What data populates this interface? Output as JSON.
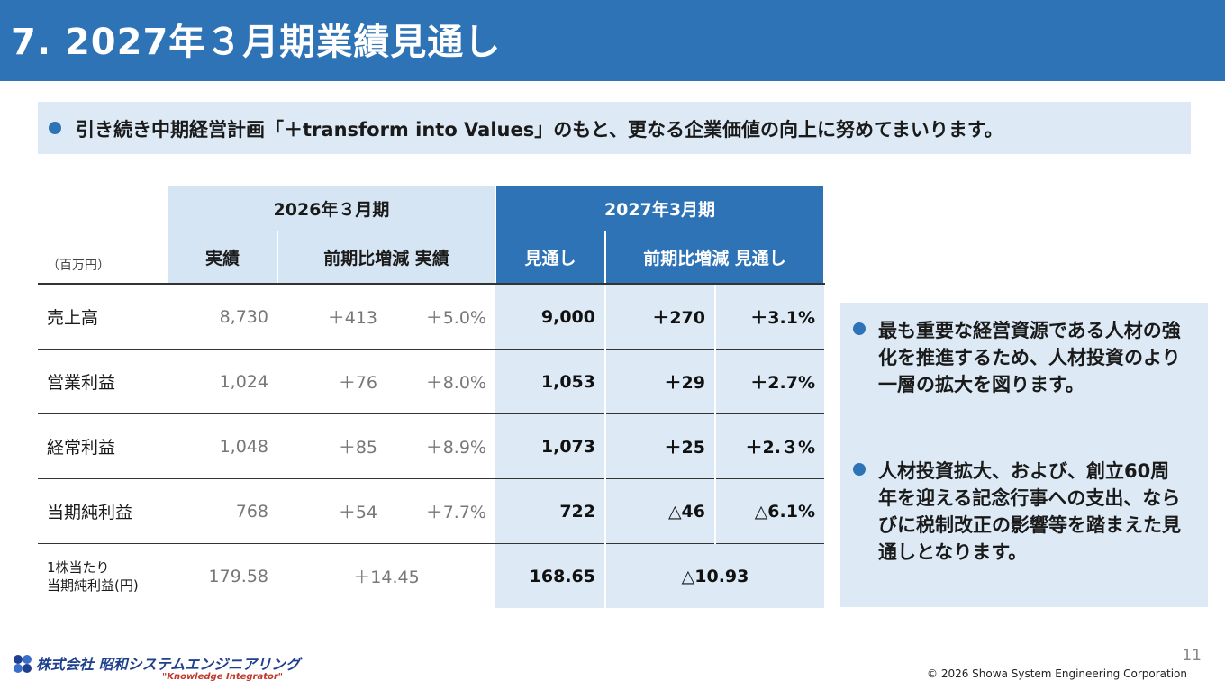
{
  "header": {
    "title": "7. 2027年３月期業績見通し"
  },
  "banner": {
    "text": "引き続き中期経営計画「＋transform into Values」のもと、更なる企業価値の向上に努めてまいります。"
  },
  "table": {
    "unit": "（百万円）",
    "group_2026": "2026年３月期",
    "group_2027": "2027年3月期",
    "sub_actual": "実績",
    "sub_yoy_actual": "前期比増減 実績",
    "sub_forecast": "見通し",
    "sub_yoy_forecast": "前期比増減 見通し",
    "rows": [
      {
        "label": "売上高",
        "actual": "8,730",
        "diff": "＋413",
        "pct": "＋5.0%",
        "forecast": "9,000",
        "fdiff": "＋270",
        "fpct": "＋3.1%"
      },
      {
        "label": "営業利益",
        "actual": "1,024",
        "diff": "＋76",
        "pct": "＋8.0%",
        "forecast": "1,053",
        "fdiff": "＋29",
        "fpct": "＋2.7%"
      },
      {
        "label": "経常利益",
        "actual": "1,048",
        "diff": "＋85",
        "pct": "＋8.9%",
        "forecast": "1,073",
        "fdiff": "＋25",
        "fpct": "＋2.３%"
      },
      {
        "label": "当期純利益",
        "actual": "768",
        "diff": "＋54",
        "pct": "＋7.7%",
        "forecast": "722",
        "fdiff": "△46",
        "fpct": "△6.1%"
      }
    ],
    "eps": {
      "label_line1": "1株当たり",
      "label_line2": "当期純利益(円)",
      "actual": "179.58",
      "diff": "＋14.45",
      "forecast": "168.65",
      "fdiff": "△10.93"
    }
  },
  "side": {
    "item1": "最も重要な経営資源である人材の強化を推進するため、人材投資のより一層の拡大を図ります。",
    "item2": "人材投資拡大、および、創立60周年を迎える記念行事への支出、ならびに税制改正の影響等を踏まえた見通しとなります。"
  },
  "footer": {
    "page": "11",
    "copyright": "© 2026 Showa System Engineering Corporation",
    "logo_text": "株式会社 昭和システムエンジニアリング",
    "logo_tagline": "\"Knowledge Integrator\""
  },
  "colors": {
    "accent": "#2e73b6",
    "light": "#ddeaf6"
  }
}
